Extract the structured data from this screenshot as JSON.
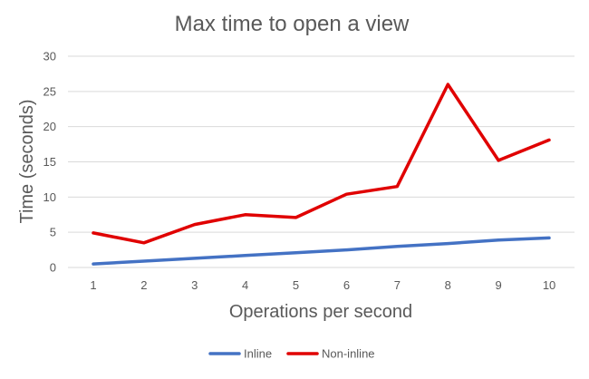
{
  "chart_data": {
    "type": "line",
    "title": "Max time to open a view",
    "xlabel": "Operations per second",
    "ylabel": "Time (seconds)",
    "categories": [
      "1",
      "2",
      "3",
      "4",
      "5",
      "6",
      "7",
      "8",
      "9",
      "10"
    ],
    "ylim": [
      0,
      30
    ],
    "yticks": [
      "0",
      "5",
      "10",
      "15",
      "20",
      "25",
      "30"
    ],
    "grid": true,
    "legend_position": "bottom",
    "series": [
      {
        "name": "Inline",
        "color": "#4472c4",
        "values": [
          0.5,
          0.9,
          1.3,
          1.7,
          2.1,
          2.5,
          3.0,
          3.4,
          3.9,
          4.2
        ]
      },
      {
        "name": "Non-inline",
        "color": "#e00000",
        "values": [
          4.9,
          3.5,
          6.1,
          7.5,
          7.1,
          10.4,
          11.5,
          26.0,
          15.2,
          18.1
        ]
      }
    ]
  }
}
